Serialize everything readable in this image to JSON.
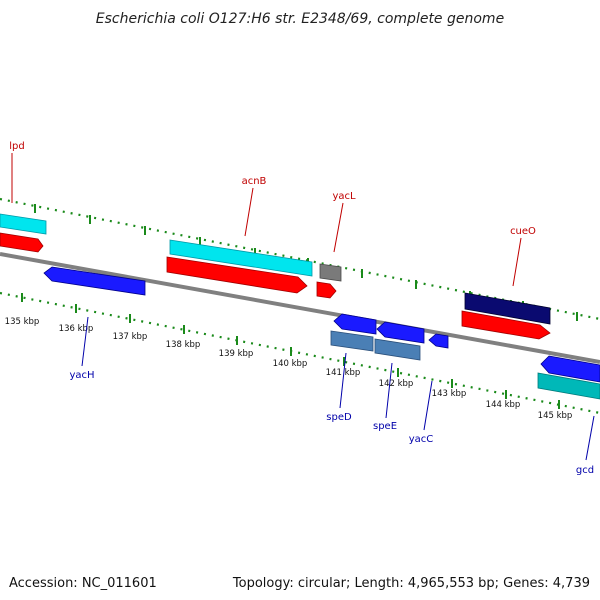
{
  "title": "Escherichia coli O127:H6 str. E2348/69, complete genome",
  "footer": {
    "accession": "Accession: NC_011601",
    "summary": "Topology: circular; Length: 4,965,553 bp; Genes: 4,739"
  },
  "colors": {
    "backbone": "#808080",
    "tick": "#1a8a1a",
    "top_label": "#c00000",
    "bottom_label": "#0000aa",
    "cyan": "#00e5ee",
    "red": "#ff0000",
    "blue": "#1a1aff",
    "navy": "#0a0a70",
    "steel": "#4a7fb5",
    "teal": "#00b8b8",
    "gray": "#7a7a7a"
  },
  "scale_labels": [
    "135 kbp",
    "136 kbp",
    "137 kbp",
    "138 kbp",
    "139 kbp",
    "140 kbp",
    "141 kbp",
    "142 kbp",
    "143 kbp",
    "144 kbp",
    "145 kbp"
  ],
  "gene_labels": {
    "lpd": "lpd",
    "acnB": "acnB",
    "yacL": "yacL",
    "cueO": "cueO",
    "yacH": "yacH",
    "speD": "speD",
    "speE": "speE",
    "yacC": "yacC",
    "gcd": "gcd"
  }
}
